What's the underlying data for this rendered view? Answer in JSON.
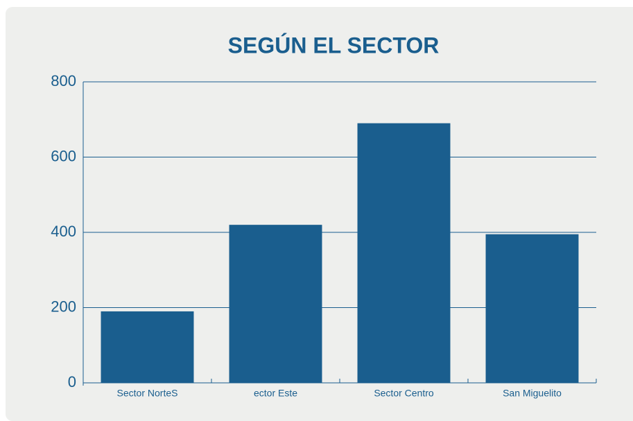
{
  "chart_data": {
    "type": "bar",
    "title": "SEGÚN EL SECTOR",
    "categories": [
      "Sector NorteS",
      "ector Este",
      "Sector Centro",
      "San Miguelito"
    ],
    "values": [
      190,
      420,
      690,
      395
    ],
    "color": "#1a5e8e",
    "ylim": [
      0,
      800
    ],
    "yticks": [
      0,
      200,
      400,
      600,
      800
    ],
    "grid": true
  }
}
